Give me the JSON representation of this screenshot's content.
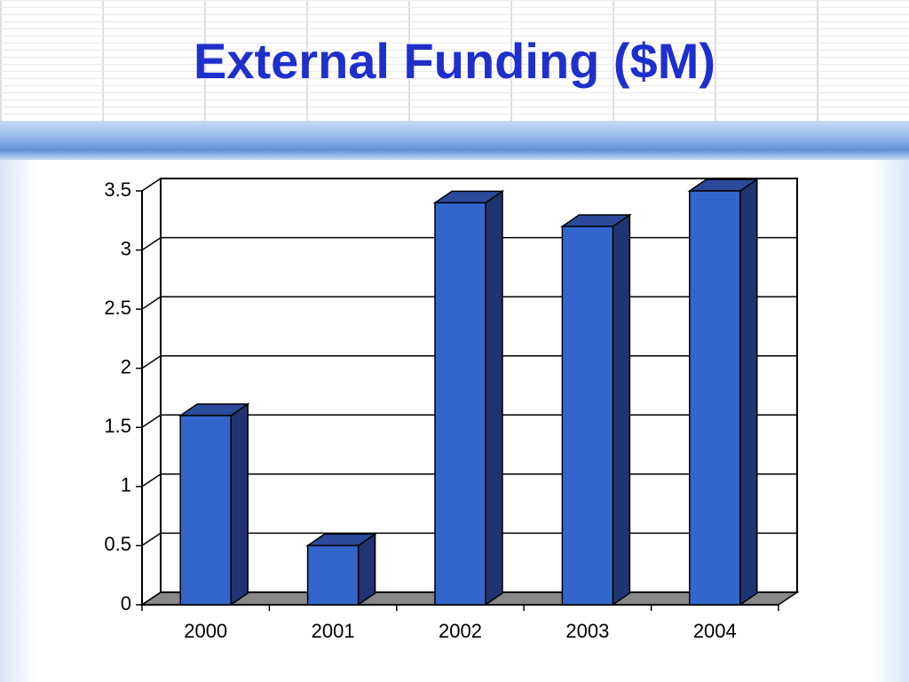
{
  "chart_data": {
    "type": "bar",
    "title": "External Funding ($M)",
    "categories": [
      "2000",
      "2001",
      "2002",
      "2003",
      "2004"
    ],
    "values": [
      1.6,
      0.5,
      3.4,
      3.2,
      3.5
    ],
    "color": "#3366cc",
    "ylim": [
      0,
      3.5
    ],
    "yticks": [
      0,
      0.5,
      1,
      1.5,
      2,
      2.5,
      3,
      3.5
    ],
    "grid": true
  }
}
